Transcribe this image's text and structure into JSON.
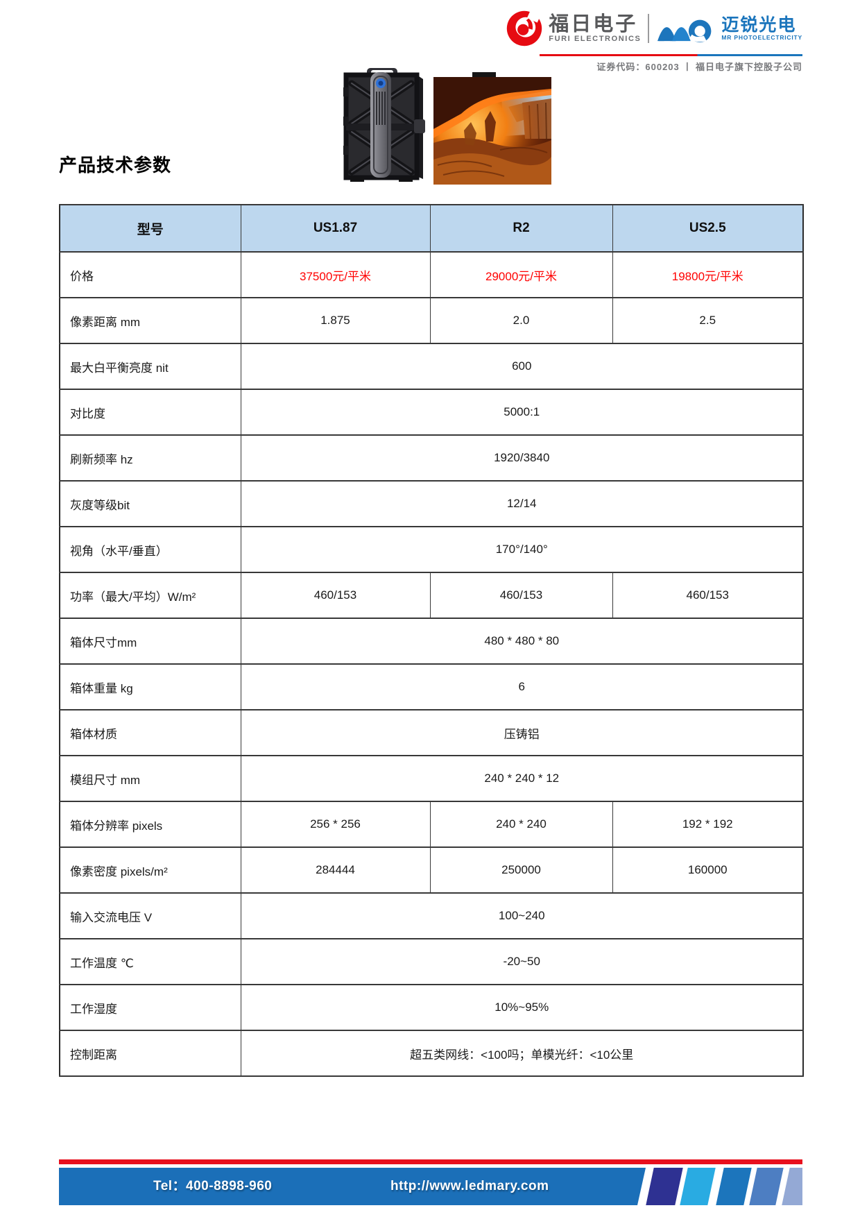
{
  "header": {
    "furi": {
      "name_cn": "福日电子",
      "name_en": "FURI ELECTRONICS"
    },
    "mr": {
      "name_cn": "迈锐光电",
      "name_en": "MR PHOTOELECTRICITY"
    },
    "tagline": "证券代码：600203 丨 福日电子旗下控股子公司"
  },
  "page_title": "产品技术参数",
  "table": {
    "columns": [
      "型号",
      "US1.87",
      "R2",
      "US2.5"
    ],
    "rows": [
      {
        "label": "价格",
        "values": [
          "37500元/平米",
          "29000元/平米",
          "19800元/平米"
        ],
        "highlight": true
      },
      {
        "label": "像素距离  mm",
        "values": [
          "1.875",
          "2.0",
          "2.5"
        ]
      },
      {
        "label": "最大白平衡亮度  nit",
        "span": "600"
      },
      {
        "label": "对比度",
        "span": "5000:1"
      },
      {
        "label": "刷新频率  hz",
        "span": "1920/3840"
      },
      {
        "label": "灰度等级bit",
        "span": "12/14"
      },
      {
        "label": "视角（水平/垂直）",
        "span": "170°/140°"
      },
      {
        "label": "功率（最大/平均）W/m²",
        "values": [
          "460/153",
          "460/153",
          "460/153"
        ]
      },
      {
        "label": "箱体尺寸mm",
        "span": "480 * 480 * 80"
      },
      {
        "label": "箱体重量  kg",
        "span": "6"
      },
      {
        "label": "箱体材质",
        "span": "压铸铝"
      },
      {
        "label": "模组尺寸  mm",
        "span": "240 * 240 * 12"
      },
      {
        "label": "箱体分辨率  pixels",
        "values": [
          "256 * 256",
          "240 * 240",
          "192 * 192"
        ]
      },
      {
        "label": "像素密度  pixels/m²",
        "values": [
          "284444",
          "250000",
          "160000"
        ]
      },
      {
        "label": "输入交流电压  V",
        "span": "100~240"
      },
      {
        "label": "工作温度  ℃",
        "span": "-20~50"
      },
      {
        "label": "工作湿度",
        "span": "10%~95%"
      },
      {
        "label": "控制距离",
        "span": "超五类网线：<100吗；单模光纤：<10公里"
      }
    ]
  },
  "footer": {
    "tel": "Tel：400-8898-960",
    "url": "http://www.ledmary.com"
  },
  "colors": {
    "table_header_fill": "#bdd7ee",
    "price_red": "#ff0000",
    "brand_red": "#e60b12",
    "brand_blue": "#1b75bc",
    "brand_gray": "#58595b",
    "footer_blue": "#1b6fb8",
    "footer_red": "#e8101e",
    "footer_stripes": [
      "#2e3192",
      "#29abe2",
      "#1c75bc",
      "#4d7ec2",
      "#94a9d5"
    ]
  }
}
